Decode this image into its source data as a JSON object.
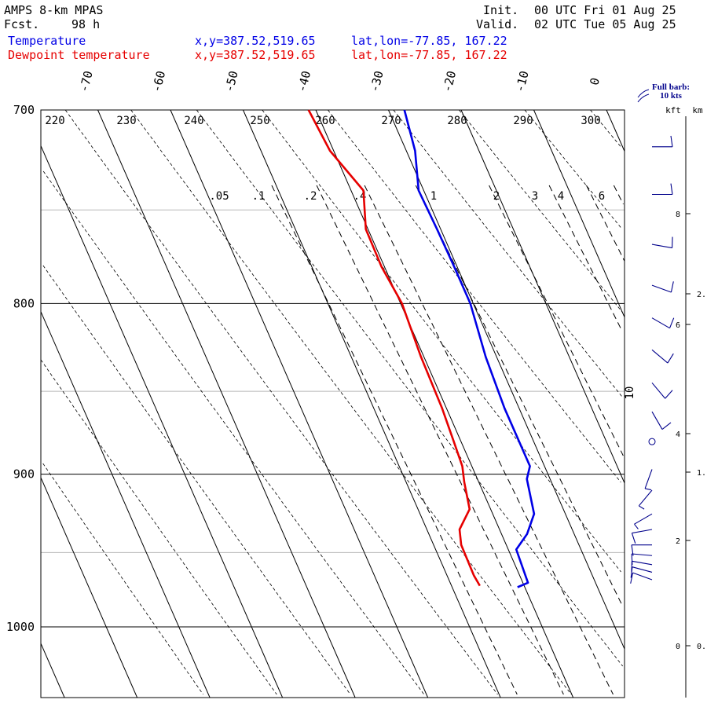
{
  "header": {
    "model": "AMPS 8-km MPAS",
    "fcst_label": "Fcst.",
    "fcst_hours": "98 h",
    "init_label": "Init.",
    "init_time": "00 UTC Fri 01 Aug 25",
    "valid_label": "Valid.",
    "valid_time": "02 UTC Tue 05 Aug 25"
  },
  "legend": [
    {
      "label": "Temperature",
      "xy": "x,y=387.52,519.65",
      "latlon": "lat,lon=-77.85, 167.22",
      "color": "#0000e6"
    },
    {
      "label": "Dewpoint temperature",
      "xy": "x,y=387.52,519.65",
      "latlon": "lat,lon=-77.85, 167.22",
      "color": "#e60000"
    }
  ],
  "wind_key": {
    "line1": "Full barb:",
    "line2": "10 kts"
  },
  "height_axis": {
    "kft_label": "kft",
    "km_label": "km"
  },
  "chart_data": {
    "type": "line",
    "subtype": "skew-T log-P thermodynamic diagram",
    "pressure_range_hpa": [
      700,
      1050
    ],
    "pressure_labels": [
      700,
      800,
      900,
      1000
    ],
    "temperature_labels": [
      -70,
      -60,
      -50,
      -40,
      -30,
      -20,
      -10,
      0
    ],
    "theta_labels": [
      220,
      230,
      240,
      250,
      260,
      270,
      280,
      290,
      300
    ],
    "mixing_ratio_labels": [
      ".05",
      ".1",
      ".2",
      ".4",
      "1",
      "2",
      "3",
      "4",
      "6",
      "10"
    ],
    "kft_ticks": [
      0,
      2,
      4,
      6,
      8
    ],
    "km_ticks": [
      "0.",
      "1.",
      "2."
    ],
    "series": [
      {
        "name": "Temperature",
        "color": "#0000e6",
        "points": [
          {
            "p": 700,
            "t": -27.8
          },
          {
            "p": 720,
            "t": -28.8
          },
          {
            "p": 740,
            "t": -30.7
          },
          {
            "p": 760,
            "t": -30.5
          },
          {
            "p": 780,
            "t": -30.4
          },
          {
            "p": 800,
            "t": -30.4
          },
          {
            "p": 830,
            "t": -31.5
          },
          {
            "p": 860,
            "t": -32.0
          },
          {
            "p": 895,
            "t": -32.0
          },
          {
            "p": 903,
            "t": -33.2
          },
          {
            "p": 925,
            "t": -34.3
          },
          {
            "p": 938,
            "t": -36.5
          },
          {
            "p": 948,
            "t": -38.9
          },
          {
            "p": 970,
            "t": -39.3
          },
          {
            "p": 973,
            "t": -41.0
          }
        ]
      },
      {
        "name": "Dewpoint temperature",
        "color": "#e60000",
        "points": [
          {
            "p": 700,
            "t": -41.0
          },
          {
            "p": 720,
            "t": -40.5
          },
          {
            "p": 740,
            "t": -38.3
          },
          {
            "p": 760,
            "t": -40.3
          },
          {
            "p": 780,
            "t": -40.4
          },
          {
            "p": 800,
            "t": -39.8
          },
          {
            "p": 830,
            "t": -40.4
          },
          {
            "p": 860,
            "t": -40.6
          },
          {
            "p": 880,
            "t": -41.0
          },
          {
            "p": 895,
            "t": -41.3
          },
          {
            "p": 905,
            "t": -42.0
          },
          {
            "p": 922,
            "t": -42.9
          },
          {
            "p": 935,
            "t": -45.5
          },
          {
            "p": 945,
            "t": -46.2
          },
          {
            "p": 965,
            "t": -46.3
          },
          {
            "p": 972,
            "t": -46.1
          }
        ]
      }
    ],
    "wind_barbs_kt": [
      {
        "p": 718,
        "speed": 10,
        "dir": 270
      },
      {
        "p": 742,
        "speed": 10,
        "dir": 270
      },
      {
        "p": 768,
        "speed": 10,
        "dir": 280
      },
      {
        "p": 790,
        "speed": 10,
        "dir": 290
      },
      {
        "p": 808,
        "speed": 10,
        "dir": 300
      },
      {
        "p": 826,
        "speed": 10,
        "dir": 310
      },
      {
        "p": 845,
        "speed": 10,
        "dir": 320
      },
      {
        "p": 862,
        "speed": 10,
        "dir": 330
      },
      {
        "p": 880,
        "speed": 0,
        "dir": 0
      },
      {
        "p": 897,
        "speed": 5,
        "dir": 20
      },
      {
        "p": 910,
        "speed": 5,
        "dir": 40
      },
      {
        "p": 925,
        "speed": 5,
        "dir": 60
      },
      {
        "p": 935,
        "speed": 10,
        "dir": 80
      },
      {
        "p": 945,
        "speed": 10,
        "dir": 90
      },
      {
        "p": 952,
        "speed": 10,
        "dir": 95
      },
      {
        "p": 958,
        "speed": 10,
        "dir": 100
      },
      {
        "p": 963,
        "speed": 10,
        "dir": 105
      },
      {
        "p": 968,
        "speed": 10,
        "dir": 110
      }
    ]
  }
}
